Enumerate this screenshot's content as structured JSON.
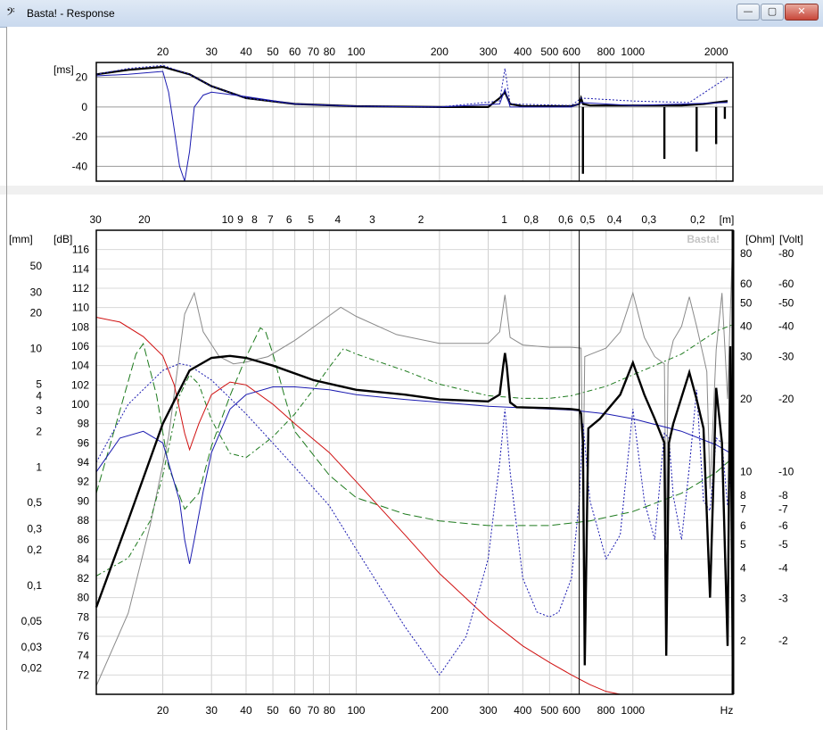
{
  "window": {
    "icon": "bass-clef-icon",
    "icon_glyph": "𝄢",
    "title": "Basta! - Response",
    "minimize_glyph": "—",
    "maximize_glyph": "▢",
    "close_glyph": "✕"
  },
  "chart_data": [
    {
      "type": "line",
      "panel": "top",
      "title": "",
      "x_scale": "log",
      "xlim": [
        11.5,
        2300
      ],
      "x_tick_labels": [
        "20",
        "30",
        "40",
        "50",
        "60",
        "70",
        "80",
        "100",
        "200",
        "300",
        "400",
        "500",
        "600",
        "800",
        "1000",
        "2000"
      ],
      "x_ticks": [
        20,
        30,
        40,
        50,
        60,
        70,
        80,
        100,
        200,
        300,
        400,
        500,
        600,
        800,
        1000,
        2000
      ],
      "ylabel": "[ms]",
      "ylim": [
        -50,
        30
      ],
      "y_ticks": [
        20,
        0,
        -20,
        -40
      ],
      "grid": true,
      "cursor_x": 640,
      "series": [
        {
          "style": "black-thick",
          "x": [
            11.5,
            15,
            20,
            25,
            30,
            40,
            60,
            100,
            200,
            300,
            330,
            345,
            360,
            400,
            600,
            640,
            650,
            660,
            700,
            1000,
            1500,
            1800,
            2200
          ],
          "y": [
            22,
            25,
            27,
            22,
            14,
            6,
            2,
            0.5,
            0,
            0,
            6,
            10,
            2,
            0.5,
            0.5,
            2,
            6,
            2,
            1,
            1,
            1,
            2,
            4
          ]
        },
        {
          "style": "blue-thin",
          "x": [
            11.5,
            15,
            20,
            21,
            22,
            23,
            24,
            25,
            26,
            28,
            30,
            40,
            60,
            100,
            200,
            330,
            345,
            360,
            600,
            650,
            1000,
            2200
          ],
          "y": [
            21,
            22,
            24,
            10,
            -15,
            -40,
            -50,
            -30,
            0,
            8,
            10,
            7,
            2,
            0.5,
            0,
            2,
            12,
            0,
            0,
            3,
            1,
            3
          ]
        },
        {
          "style": "blue-dotted",
          "x": [
            11.5,
            15,
            20,
            25,
            30,
            40,
            60,
            100,
            200,
            330,
            345,
            360,
            600,
            650,
            1000,
            1600,
            2200
          ],
          "y": [
            22,
            26,
            28,
            22,
            14,
            6,
            2,
            0.5,
            0,
            4,
            26,
            2,
            1,
            6,
            4,
            3,
            20
          ]
        },
        {
          "style": "black-spikes",
          "x": [
            660,
            1300,
            1700,
            2000,
            2150
          ],
          "y": [
            -45,
            -35,
            -30,
            -25,
            -8
          ]
        }
      ]
    },
    {
      "type": "line",
      "panel": "bottom",
      "title": "",
      "watermark": "Basta!",
      "x_scale": "log",
      "xlim": [
        11.5,
        2300
      ],
      "x_tick_labels": [
        "20",
        "30",
        "40",
        "50",
        "60",
        "70",
        "80",
        "100",
        "200",
        "300",
        "400",
        "500",
        "600",
        "800",
        "1000",
        "Hz"
      ],
      "x_ticks": [
        20,
        30,
        40,
        50,
        60,
        70,
        80,
        100,
        200,
        300,
        400,
        500,
        600,
        800,
        1000
      ],
      "top_axis_label": "[m]",
      "top_axis_ticks": [
        {
          "label": "30",
          "at": 11.43
        },
        {
          "label": "20",
          "at": 17.15
        },
        {
          "label": "10",
          "at": 34.3
        },
        {
          "label": "9",
          "at": 38.1
        },
        {
          "label": "8",
          "at": 42.9
        },
        {
          "label": "7",
          "at": 49.0
        },
        {
          "label": "6",
          "at": 57.2
        },
        {
          "label": "5",
          "at": 68.6
        },
        {
          "label": "4",
          "at": 85.8
        },
        {
          "label": "3",
          "at": 114.3
        },
        {
          "label": "2",
          "at": 171.5
        },
        {
          "label": "1",
          "at": 343
        },
        {
          "label": "0,8",
          "at": 429
        },
        {
          "label": "0,6",
          "at": 572
        },
        {
          "label": "0,5",
          "at": 686
        },
        {
          "label": "0,4",
          "at": 858
        },
        {
          "label": "0,3",
          "at": 1143
        },
        {
          "label": "0,2",
          "at": 1715
        }
      ],
      "axes": {
        "mm": {
          "label": "[mm]",
          "ticks": [
            "50",
            "30",
            "20",
            "10",
            "5",
            "4",
            "3",
            "2",
            "1",
            "0,5",
            "0,3",
            "0,2",
            "0,1",
            "0,05",
            "0,03",
            "0,02"
          ],
          "values": [
            50,
            30,
            20,
            10,
            5,
            4,
            3,
            2,
            1,
            0.5,
            0.3,
            0.2,
            0.1,
            0.05,
            0.03,
            0.02
          ],
          "range": [
            0.012,
            100
          ]
        },
        "dB": {
          "label": "[dB]",
          "ticks": [
            "116",
            "114",
            "112",
            "110",
            "108",
            "106",
            "104",
            "102",
            "100",
            "98",
            "96",
            "94",
            "92",
            "90",
            "88",
            "86",
            "84",
            "82",
            "80",
            "78",
            "76",
            "74",
            "72"
          ],
          "values": [
            116,
            114,
            112,
            110,
            108,
            106,
            104,
            102,
            100,
            98,
            96,
            94,
            92,
            90,
            88,
            86,
            84,
            82,
            80,
            78,
            76,
            74,
            72
          ],
          "range": [
            70,
            118
          ]
        },
        "ohm": {
          "label": "[Ohm]",
          "ticks": [
            "80",
            "60",
            "50",
            "40",
            "30",
            "20",
            "10",
            "8",
            "7",
            "6",
            "5",
            "4",
            "3",
            "2"
          ],
          "values": [
            80,
            60,
            50,
            40,
            30,
            20,
            10,
            8,
            7,
            6,
            5,
            4,
            3,
            2
          ],
          "range": [
            1.2,
            100
          ]
        },
        "volt": {
          "label": "[Volt]",
          "ticks": [
            "-80",
            "-60",
            "-50",
            "-40",
            "-30",
            "-20",
            "-10",
            "-8",
            "-7",
            "-6",
            "-5",
            "-4",
            "-3",
            "-2"
          ],
          "values": [
            80,
            60,
            50,
            40,
            30,
            20,
            10,
            8,
            7,
            6,
            5,
            4,
            3,
            2
          ],
          "range": [
            1.2,
            100
          ]
        }
      },
      "grid": true,
      "cursor_x": 640,
      "series": [
        {
          "style": "black-thick",
          "axis": "dB",
          "x": [
            11.5,
            15,
            20,
            25,
            30,
            35,
            40,
            50,
            70,
            100,
            150,
            200,
            300,
            330,
            340,
            345,
            350,
            360,
            380,
            500,
            600,
            640,
            650,
            660,
            670,
            690,
            760,
            900,
            1000,
            1100,
            1200,
            1300,
            1320,
            1350,
            1400,
            1600,
            1700,
            1800,
            1900,
            2000,
            2100,
            2200,
            2250,
            2300
          ],
          "y": [
            79,
            88,
            98,
            103.5,
            104.8,
            105,
            104.8,
            104,
            102.5,
            101.5,
            101,
            100.5,
            100.3,
            101,
            104,
            105.3,
            104,
            100.2,
            99.7,
            99.6,
            99.5,
            99.4,
            99,
            96,
            73,
            97.5,
            98.5,
            101,
            104.3,
            101,
            98.5,
            96,
            74,
            96,
            98,
            103.3,
            100.5,
            97.5,
            80,
            101.7,
            96,
            75,
            106,
            70
          ]
        },
        {
          "style": "blue-thin",
          "axis": "dB",
          "x": [
            11.5,
            14,
            17,
            20,
            23,
            24,
            25,
            26,
            28,
            30,
            35,
            40,
            50,
            60,
            80,
            100,
            150,
            200,
            300,
            500,
            600,
            800,
            1000,
            1500,
            2000,
            2300
          ],
          "y": [
            93,
            96.5,
            97.2,
            96,
            90,
            86,
            83.5,
            86,
            91,
            95,
            99.5,
            101,
            101.8,
            101.8,
            101.5,
            101,
            100.5,
            100.2,
            99.8,
            99.5,
            99.4,
            99,
            98.5,
            97.2,
            95.8,
            94.8
          ]
        },
        {
          "style": "blue-dotted",
          "axis": "dB",
          "x": [
            11.5,
            15,
            20,
            23,
            25,
            30,
            40,
            60,
            80,
            100,
            150,
            200,
            250,
            300,
            330,
            345,
            360,
            400,
            450,
            500,
            540,
            600,
            640,
            660,
            700,
            800,
            900,
            1000,
            1100,
            1200,
            1300,
            1350,
            1400,
            1500,
            1600,
            1700,
            1800,
            1900,
            2000,
            2100,
            2200,
            2300
          ],
          "y": [
            94,
            100,
            103.5,
            104.2,
            104,
            102.5,
            99,
            93.5,
            89.5,
            85,
            77,
            72,
            76,
            84,
            94,
            99.5,
            93,
            82,
            78.5,
            78,
            78.5,
            82,
            90,
            98,
            90,
            84,
            86.5,
            99.5,
            90,
            86,
            97,
            96.5,
            90.5,
            86,
            93.5,
            101.5,
            90,
            89,
            96.5,
            96,
            89.5,
            95
          ]
        },
        {
          "style": "red-thin",
          "axis": "dB",
          "x": [
            11.5,
            14,
            17,
            20,
            22,
            24,
            25,
            27,
            30,
            35,
            40,
            50,
            60,
            80,
            100,
            150,
            200,
            300,
            400,
            500,
            600,
            700,
            800,
            900,
            1000,
            1500,
            2000,
            2300
          ],
          "y": [
            109,
            108.5,
            107,
            105,
            102,
            97,
            95.3,
            98,
            101,
            102.3,
            102,
            100,
            98,
            95,
            92,
            86.5,
            82.5,
            77.8,
            75,
            73.3,
            72,
            71,
            70.3,
            70,
            69.6,
            69.5,
            69.5,
            69.5
          ]
        },
        {
          "style": "gray-thin",
          "axis": "ohm",
          "x": [
            11.5,
            15,
            18,
            21,
            24,
            26,
            28,
            32,
            36,
            40,
            48,
            60,
            75,
            88,
            100,
            140,
            200,
            300,
            330,
            345,
            360,
            400,
            500,
            600,
            650,
            660,
            670,
            700,
            800,
            900,
            1000,
            1100,
            1200,
            1300,
            1320,
            1340,
            1400,
            1500,
            1600,
            1700,
            1800,
            1850,
            1900,
            2000,
            2100,
            2200,
            2300
          ],
          "y": [
            1.3,
            2.6,
            6,
            14,
            45,
            55,
            38,
            30,
            28,
            28.5,
            30,
            35,
            42,
            48,
            44,
            37,
            34,
            34,
            38,
            54,
            36,
            33.5,
            32.8,
            32.8,
            32.5,
            8,
            30,
            30.6,
            32.5,
            38,
            55,
            36,
            30,
            28,
            5,
            28,
            35,
            40,
            53,
            40,
            30,
            26,
            8.5,
            32,
            55,
            20,
            100
          ]
        },
        {
          "style": "green-dashed",
          "axis": "mm",
          "x": [
            11.5,
            14,
            16,
            17,
            19,
            21,
            24,
            27,
            30,
            35,
            40,
            45,
            47,
            50,
            55,
            60,
            80,
            100,
            150,
            200,
            300,
            500,
            700,
            1000,
            1500,
            2000,
            2300
          ],
          "y": [
            0.6,
            3,
            9,
            11,
            4,
            1,
            0.44,
            0.6,
            1.5,
            4,
            8.5,
            15,
            14,
            9,
            4,
            2,
            0.85,
            0.55,
            0.4,
            0.35,
            0.32,
            0.32,
            0.35,
            0.42,
            0.6,
            0.9,
            1.2
          ]
        },
        {
          "style": "green-dashdot",
          "axis": "mm",
          "x": [
            11.5,
            15,
            18,
            20,
            23,
            25,
            27,
            30,
            35,
            40,
            50,
            60,
            70,
            80,
            90,
            100,
            150,
            200,
            300,
            400,
            500,
            600,
            800,
            1000,
            1500,
            2000,
            2300
          ],
          "y": [
            0.12,
            0.17,
            0.35,
            0.85,
            4,
            6,
            5,
            2.5,
            1.3,
            1.2,
            1.8,
            2.8,
            4.5,
            7,
            10,
            9,
            6.5,
            5,
            4,
            3.8,
            3.8,
            4,
            4.8,
            6,
            9,
            14,
            16
          ]
        }
      ]
    }
  ]
}
